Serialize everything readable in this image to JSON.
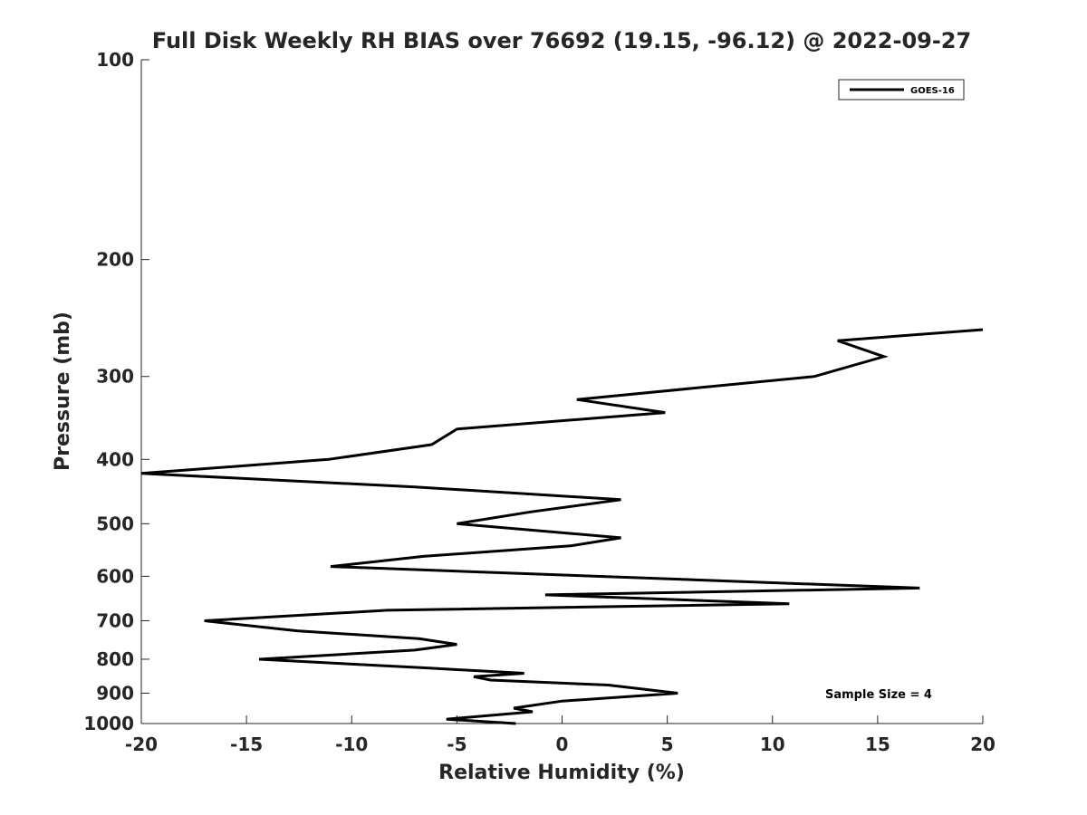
{
  "chart_data": {
    "type": "line",
    "title": "Full Disk Weekly RH BIAS over 76692 (19.15, -96.12) @ 2022-09-27",
    "xlabel": "Relative Humidity (%)",
    "ylabel": "Pressure (mb)",
    "xlim": [
      -20,
      20
    ],
    "ylim": [
      100,
      1000
    ],
    "y_scale": "log",
    "y_reversed": true,
    "grid": false,
    "x_ticks": [
      -20,
      -15,
      -10,
      -5,
      0,
      5,
      10,
      15,
      20
    ],
    "y_ticks": [
      100,
      200,
      300,
      400,
      500,
      600,
      700,
      800,
      900,
      1000
    ],
    "legend_position": "top-right",
    "series": [
      {
        "name": "GOES-16",
        "color": "#000000",
        "x": [
          -2.2,
          -5.5,
          -1.4,
          -2.3,
          0.0,
          5.5,
          2.2,
          -3.4,
          -4.2,
          -1.8,
          -6.3,
          -14.4,
          -7.0,
          -5.0,
          -6.8,
          -12.6,
          -17.0,
          -8.3,
          10.8,
          -0.8,
          17.0,
          -11.0,
          -6.6,
          0.4,
          2.8,
          -5.0,
          -1.5,
          2.8,
          -7.0,
          -20.0,
          -11.1,
          -6.2,
          -5.0,
          4.9,
          0.7,
          12.0,
          15.3,
          13.1,
          20.0
        ],
        "y": [
          1000,
          985,
          960,
          948,
          925,
          900,
          875,
          860,
          850,
          840,
          825,
          800,
          775,
          760,
          745,
          725,
          700,
          675,
          660,
          640,
          625,
          580,
          560,
          540,
          525,
          500,
          480,
          460,
          440,
          420,
          400,
          380,
          360,
          340,
          325,
          300,
          280,
          265,
          255
        ]
      }
    ],
    "annotations": [
      "Sample Size = 4"
    ]
  }
}
